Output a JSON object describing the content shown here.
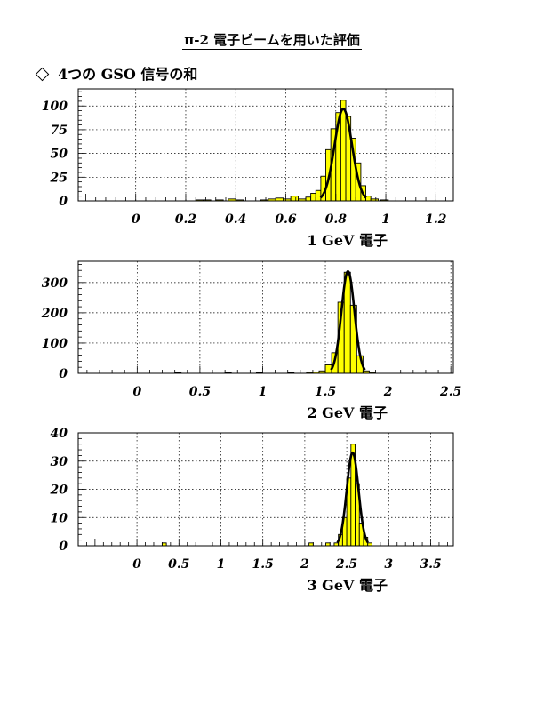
{
  "page": {
    "title": "π-2 電子ビームを用いた評価",
    "subtitle": "4つの GSO 信号の和"
  },
  "chart_data": [
    {
      "type": "histogram",
      "xlabel": "1 GeV 電子",
      "xlim": [
        -0.23,
        1.27
      ],
      "ylim": [
        0,
        118
      ],
      "xticks": [
        0,
        0.2,
        0.4,
        0.6,
        0.8,
        1,
        1.2
      ],
      "xtick_labels": [
        "0",
        "0.2",
        "0.4",
        "0.6",
        "0.8",
        "1",
        "1.2"
      ],
      "yticks": [
        0,
        25,
        50,
        75,
        100
      ],
      "ytick_labels": [
        "0",
        "25",
        "50",
        "75",
        "100"
      ],
      "grid": true,
      "fill_color": "#ffff00",
      "bins": [
        [
          0.24,
          0.27,
          1
        ],
        [
          0.27,
          0.3,
          1
        ],
        [
          0.32,
          0.35,
          1
        ],
        [
          0.37,
          0.4,
          2
        ],
        [
          0.4,
          0.43,
          1
        ],
        [
          0.5,
          0.53,
          1
        ],
        [
          0.53,
          0.56,
          2
        ],
        [
          0.56,
          0.59,
          3
        ],
        [
          0.59,
          0.62,
          2
        ],
        [
          0.62,
          0.65,
          5
        ],
        [
          0.65,
          0.68,
          2
        ],
        [
          0.68,
          0.7,
          4
        ],
        [
          0.7,
          0.72,
          8
        ],
        [
          0.72,
          0.74,
          11
        ],
        [
          0.74,
          0.76,
          26
        ],
        [
          0.76,
          0.78,
          54
        ],
        [
          0.78,
          0.8,
          76
        ],
        [
          0.8,
          0.82,
          93
        ],
        [
          0.82,
          0.84,
          106
        ],
        [
          0.84,
          0.86,
          89
        ],
        [
          0.86,
          0.88,
          66
        ],
        [
          0.88,
          0.9,
          40
        ],
        [
          0.9,
          0.92,
          16
        ],
        [
          0.92,
          0.94,
          5
        ],
        [
          0.94,
          0.97,
          2
        ],
        [
          0.98,
          1.01,
          1
        ]
      ],
      "fit": {
        "amplitude": 97,
        "mean": 0.83,
        "sigma": 0.035
      }
    },
    {
      "type": "histogram",
      "xlabel": "2 GeV 電子",
      "xlim": [
        -0.47,
        2.52
      ],
      "ylim": [
        0,
        370
      ],
      "xticks": [
        0,
        0.5,
        1,
        1.5,
        2,
        2.5
      ],
      "xtick_labels": [
        "0",
        "0.5",
        "1",
        "1.5",
        "2",
        "2.5"
      ],
      "yticks": [
        0,
        100,
        200,
        300
      ],
      "ytick_labels": [
        "0",
        "100",
        "200",
        "300"
      ],
      "grid": true,
      "fill_color": "#ffff00",
      "bins": [
        [
          0.3,
          0.35,
          2
        ],
        [
          0.7,
          0.75,
          2
        ],
        [
          0.95,
          1.0,
          2
        ],
        [
          1.2,
          1.25,
          2
        ],
        [
          1.35,
          1.4,
          3
        ],
        [
          1.4,
          1.45,
          4
        ],
        [
          1.45,
          1.5,
          8
        ],
        [
          1.5,
          1.55,
          28
        ],
        [
          1.55,
          1.6,
          68
        ],
        [
          1.6,
          1.65,
          235
        ],
        [
          1.65,
          1.7,
          334
        ],
        [
          1.7,
          1.75,
          225
        ],
        [
          1.75,
          1.8,
          58
        ],
        [
          1.8,
          1.85,
          8
        ],
        [
          1.85,
          1.9,
          3
        ]
      ],
      "fit": {
        "amplitude": 337,
        "mean": 1.68,
        "sigma": 0.052
      }
    },
    {
      "type": "histogram",
      "xlabel": "3 GeV 電子",
      "xlim": [
        -0.7,
        3.77
      ],
      "ylim": [
        0,
        40
      ],
      "xticks": [
        0,
        0.5,
        1,
        1.5,
        2,
        2.5,
        3,
        3.5
      ],
      "xtick_labels": [
        "0",
        "0.5",
        "1",
        "1.5",
        "2",
        "2.5",
        "3",
        "3.5"
      ],
      "yticks": [
        0,
        10,
        20,
        30,
        40
      ],
      "ytick_labels": [
        "0",
        "10",
        "20",
        "30",
        "40"
      ],
      "grid": true,
      "fill_color": "#ffff00",
      "bins": [
        [
          0.3,
          0.35,
          1
        ],
        [
          2.05,
          2.1,
          1
        ],
        [
          2.25,
          2.3,
          1
        ],
        [
          2.35,
          2.4,
          1
        ],
        [
          2.4,
          2.45,
          4
        ],
        [
          2.45,
          2.5,
          10
        ],
        [
          2.5,
          2.55,
          24
        ],
        [
          2.55,
          2.6,
          36
        ],
        [
          2.6,
          2.65,
          22
        ],
        [
          2.65,
          2.7,
          8
        ],
        [
          2.7,
          2.75,
          3
        ],
        [
          2.75,
          2.8,
          1
        ]
      ],
      "fit": {
        "amplitude": 33,
        "mean": 2.57,
        "sigma": 0.07
      }
    }
  ]
}
